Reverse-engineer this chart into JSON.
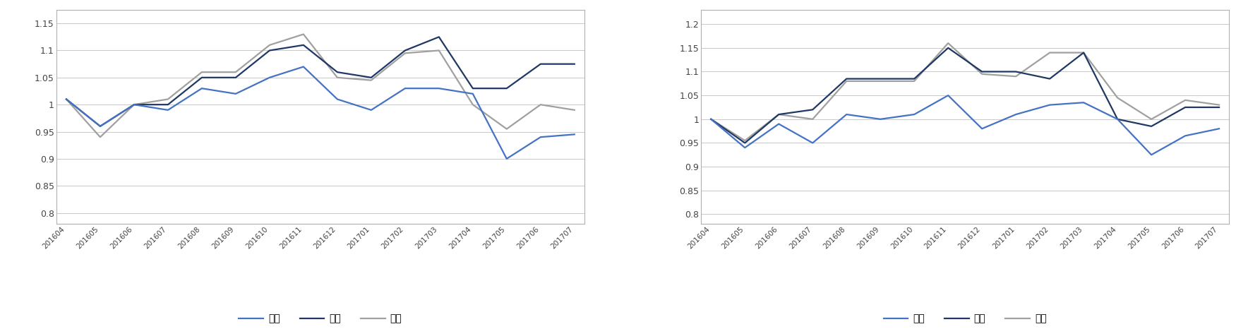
{
  "x_labels": [
    "201604",
    "201605",
    "201606",
    "201607",
    "201608",
    "201609",
    "201610",
    "201611",
    "201612",
    "201701",
    "201702",
    "201703",
    "201704",
    "201705",
    "201706",
    "201707"
  ],
  "chart1": {
    "kong": [
      1.01,
      0.96,
      1.0,
      0.99,
      1.03,
      1.02,
      1.05,
      1.07,
      1.01,
      0.99,
      1.03,
      1.03,
      1.02,
      0.9,
      0.94,
      0.945
    ],
    "zhong": [
      1.01,
      0.96,
      1.0,
      1.0,
      1.05,
      1.05,
      1.1,
      1.11,
      1.06,
      1.05,
      1.1,
      1.125,
      1.03,
      1.03,
      1.075,
      1.075
    ],
    "duo": [
      1.01,
      0.94,
      1.0,
      1.01,
      1.06,
      1.06,
      1.11,
      1.13,
      1.05,
      1.045,
      1.095,
      1.1,
      1.0,
      0.955,
      1.0,
      0.99
    ]
  },
  "chart2": {
    "kong": [
      1.0,
      0.94,
      0.99,
      0.95,
      1.01,
      1.0,
      1.01,
      1.05,
      0.98,
      1.01,
      1.03,
      1.035,
      1.0,
      0.925,
      0.965,
      0.98
    ],
    "zhong": [
      1.0,
      0.95,
      1.01,
      1.02,
      1.085,
      1.085,
      1.085,
      1.15,
      1.1,
      1.1,
      1.085,
      1.14,
      1.0,
      0.985,
      1.025,
      1.025
    ],
    "duo": [
      1.0,
      0.955,
      1.01,
      1.0,
      1.08,
      1.08,
      1.08,
      1.16,
      1.095,
      1.09,
      1.14,
      1.14,
      1.045,
      1.0,
      1.04,
      1.03
    ]
  },
  "ylim1": [
    0.78,
    1.175
  ],
  "ylim2": [
    0.78,
    1.23
  ],
  "yticks1": [
    0.8,
    0.85,
    0.9,
    0.95,
    1.0,
    1.05,
    1.1,
    1.15
  ],
  "yticks2": [
    0.8,
    0.85,
    0.9,
    0.95,
    1.0,
    1.05,
    1.1,
    1.15,
    1.2
  ],
  "color_kong": "#4472C4",
  "color_zhong": "#1F3864",
  "color_duo": "#A0A0A0",
  "legend_labels": [
    "空头",
    "中性",
    "多头"
  ],
  "linewidth": 1.6,
  "bg_color": "#FFFFFF",
  "grid_color": "#C8C8C8",
  "border_color": "#B0B0B0"
}
